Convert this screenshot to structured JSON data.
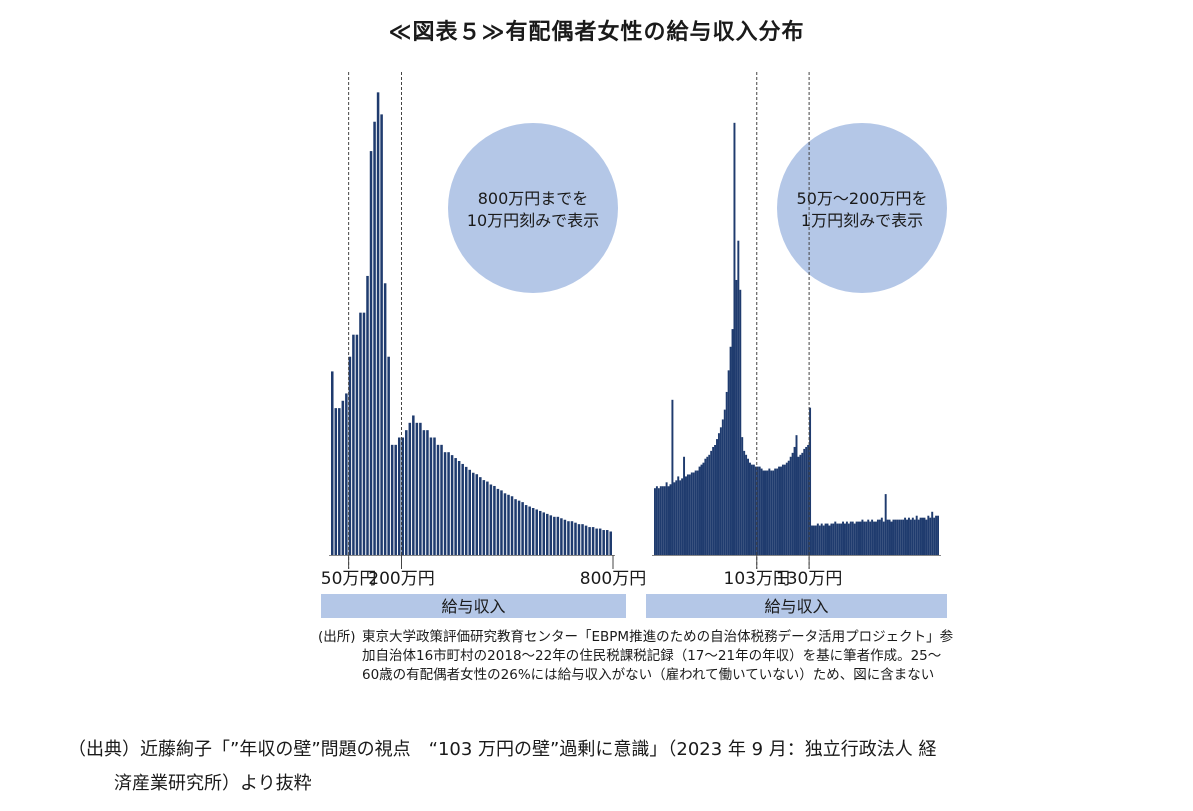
{
  "title": "≪図表５≫有配偶者女性の給与収入分布",
  "chart_data": [
    {
      "type": "bar",
      "name": "left",
      "xlabel": "給与収入",
      "tick_labels": [
        "50万円",
        "200万円",
        "800万円"
      ],
      "tick_values": [
        50,
        200,
        800
      ],
      "reference_lines": [
        50,
        200
      ],
      "annotation": [
        "800万円までを",
        "10万円刻みで表示"
      ],
      "bin_width": 10,
      "x_start": 0,
      "values": [
        12.5,
        10,
        10,
        10.5,
        11,
        13.5,
        15,
        15,
        16.5,
        16.5,
        19,
        27.5,
        29.5,
        31.5,
        30,
        18.5,
        13.5,
        7.5,
        7.5,
        8,
        8,
        8.5,
        9,
        9.5,
        9,
        9,
        8.5,
        8.5,
        8,
        8,
        7.5,
        7.5,
        7,
        7,
        6.8,
        6.6,
        6.4,
        6.2,
        6,
        5.8,
        5.6,
        5.5,
        5.3,
        5.1,
        5,
        4.8,
        4.7,
        4.5,
        4.4,
        4.2,
        4.1,
        4,
        3.8,
        3.7,
        3.6,
        3.4,
        3.3,
        3.2,
        3.1,
        3,
        2.9,
        2.8,
        2.7,
        2.6,
        2.6,
        2.5,
        2.4,
        2.3,
        2.3,
        2.2,
        2.1,
        2.1,
        2,
        1.9,
        1.9,
        1.8,
        1.8,
        1.7,
        1.7,
        1.6
      ],
      "ylim": [
        0,
        32
      ]
    },
    {
      "type": "bar",
      "name": "right",
      "xlabel": "給与収入",
      "tick_labels": [
        "103万円",
        "130万円"
      ],
      "tick_values": [
        103,
        130
      ],
      "reference_lines": [
        103,
        130
      ],
      "annotation": [
        "50万～200万円を",
        "1万円刻みで表示"
      ],
      "bin_width": 1,
      "x_start": 50,
      "values": [
        3.4,
        3.5,
        3.4,
        3.5,
        3.5,
        3.5,
        3.7,
        3.5,
        3.6,
        7.9,
        3.7,
        3.8,
        4,
        3.8,
        3.9,
        5,
        4,
        4.1,
        4.1,
        4.2,
        4.2,
        4.3,
        4.3,
        4.5,
        4.6,
        4.7,
        4.9,
        5,
        5.1,
        5.3,
        5.5,
        5.6,
        5.9,
        6.2,
        6.5,
        6.9,
        7.4,
        8.3,
        9.4,
        10.6,
        11.5,
        22,
        14,
        16,
        13.5,
        6,
        5.3,
        5.1,
        4.9,
        4.7,
        4.6,
        4.6,
        4.5,
        4.5,
        4.5,
        4.4,
        4.3,
        4.3,
        4.3,
        4.4,
        4.3,
        4.3,
        4.4,
        4.4,
        4.5,
        4.5,
        4.6,
        4.6,
        4.7,
        4.8,
        5,
        5.2,
        5.5,
        6.1,
        5,
        5.1,
        5.2,
        5.4,
        5.5,
        5.6,
        7.5,
        1.5,
        1.5,
        1.5,
        1.6,
        1.5,
        1.6,
        1.5,
        1.6,
        1.6,
        1.5,
        1.6,
        1.6,
        1.7,
        1.6,
        1.6,
        1.6,
        1.7,
        1.6,
        1.7,
        1.6,
        1.7,
        1.7,
        1.6,
        1.7,
        1.7,
        1.7,
        1.8,
        1.7,
        1.7,
        1.8,
        1.7,
        1.8,
        1.7,
        1.7,
        1.8,
        1.8,
        1.9,
        1.7,
        3.1,
        1.8,
        1.8,
        1.7,
        1.8,
        1.8,
        1.8,
        1.8,
        1.8,
        1.8,
        1.9,
        1.8,
        1.9,
        1.8,
        1.9,
        1.8,
        2,
        1.8,
        1.9,
        1.9,
        1.9,
        1.8,
        2,
        1.9,
        2.2,
        1.9,
        2,
        2
      ],
      "ylim": [
        0,
        22.5
      ]
    }
  ],
  "note": {
    "label": "(出所)",
    "text": "東京大学政策評価研究教育センター「EBPM推進のための自治体税務データ活用プロジェクト」参加自治体16市町村の2018～22年の住民税課税記録（17～21年の年収）を基に筆者作成。25～60歳の有配偶者女性の26%には給与収入がない（雇われて働いていない）ため、図に含まない"
  },
  "source": {
    "line1": "（出典）近藤絢子「”年収の壁”問題の視点　“103 万円の壁”過剰に意識」（2023 年 9 月：独立行政法人 経",
    "line2": "済産業研究所）より抜粋"
  },
  "colors": {
    "bar": "#1f3b6e",
    "circle": "#b4c7e7",
    "axis_band": "#b4c7e7"
  }
}
